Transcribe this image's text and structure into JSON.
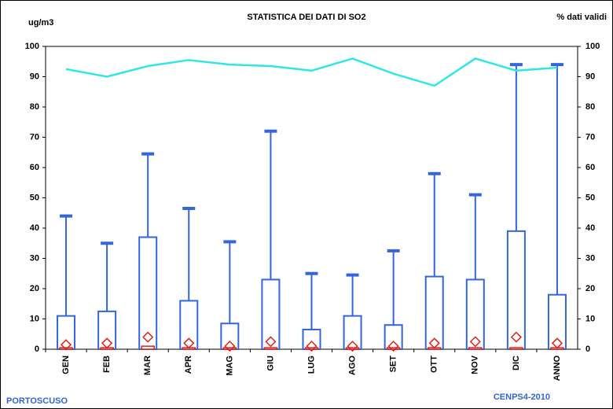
{
  "chart_data": {
    "type": "box",
    "title": "STATISTICA DEI DATI DI SO2",
    "y_label": "ug/m3",
    "y2_label": "% dati validi",
    "footer_left": "PORTOSCUSO",
    "footer_right": "CENPS4-2010",
    "categories": [
      "GEN",
      "FEB",
      "MAR",
      "APR",
      "MAG",
      "GIU",
      "LUG",
      "AGO",
      "SET",
      "OTT",
      "NOV",
      "DIC",
      "ANNO"
    ],
    "max": {
      "color": "#3366dd",
      "values": [
        44,
        35,
        64.5,
        46.5,
        35.5,
        72,
        25,
        24.5,
        32.5,
        58,
        51,
        94,
        94
      ]
    },
    "box_top": {
      "color": "#3366dd",
      "values": [
        11,
        12.5,
        37,
        16,
        8.5,
        23,
        6.5,
        11,
        8,
        24,
        23,
        39,
        18
      ]
    },
    "mean": {
      "color": "#e0201b",
      "values": [
        1.5,
        2,
        4,
        2,
        1,
        2.5,
        1,
        1,
        1,
        2,
        2.5,
        4,
        2
      ]
    },
    "median": {
      "color": "#e0201b",
      "values": [
        0.5,
        0.5,
        1,
        0.5,
        0.5,
        0.5,
        0.5,
        0.5,
        0.5,
        0.5,
        0.5,
        0.5,
        0.5
      ]
    },
    "valid": {
      "color": "#33e6e6",
      "axis": "y2",
      "values": [
        92.5,
        90,
        93.5,
        95.5,
        94,
        93.5,
        92,
        96,
        91,
        87,
        96,
        92,
        93
      ]
    },
    "ylim": [
      0,
      100
    ],
    "yticks": [
      0,
      10,
      20,
      30,
      40,
      50,
      60,
      70,
      80,
      90,
      100
    ],
    "y2lim": [
      0,
      100
    ],
    "y2ticks": [
      0,
      10,
      20,
      30,
      40,
      50,
      60,
      70,
      80,
      90,
      100
    ]
  }
}
